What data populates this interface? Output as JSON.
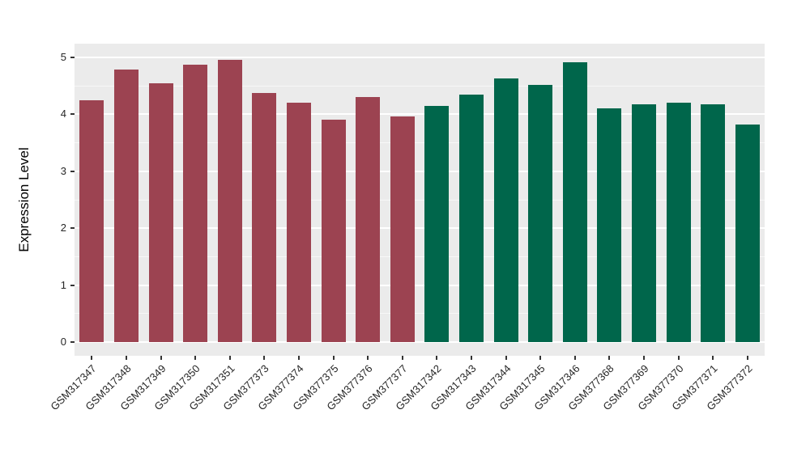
{
  "figure": {
    "background_color": "#FFFFFF",
    "panel_background_color": "#EBEBEB",
    "grid_major_color": "#FFFFFF",
    "grid_minor_color": "#F7F7F7",
    "tick_mark_color": "#333333",
    "axis_text_color": "#262626",
    "axis_title_color": "#000000"
  },
  "chart_data": {
    "type": "bar",
    "title": "",
    "xlabel": "",
    "ylabel": "Expression Level",
    "categories": [
      "GSM317347",
      "GSM317348",
      "GSM317349",
      "GSM317350",
      "GSM317351",
      "GSM377373",
      "GSM377374",
      "GSM377375",
      "GSM377376",
      "GSM377377",
      "GSM317342",
      "GSM317343",
      "GSM317344",
      "GSM317345",
      "GSM317346",
      "GSM377368",
      "GSM377369",
      "GSM377370",
      "GSM377371",
      "GSM377372"
    ],
    "values": [
      4.25,
      4.78,
      4.54,
      4.87,
      4.96,
      4.37,
      4.21,
      3.9,
      4.3,
      3.96,
      4.15,
      4.35,
      4.63,
      4.51,
      4.91,
      4.11,
      4.17,
      4.21,
      4.18,
      3.82
    ],
    "bar_groups": [
      "groupA",
      "groupA",
      "groupA",
      "groupA",
      "groupA",
      "groupA",
      "groupA",
      "groupA",
      "groupA",
      "groupA",
      "groupB",
      "groupB",
      "groupB",
      "groupB",
      "groupB",
      "groupB",
      "groupB",
      "groupB",
      "groupB",
      "groupB"
    ],
    "group_colors": {
      "groupA": "#9C4351",
      "groupB": "#00664B"
    },
    "yticks": [
      0,
      1,
      2,
      3,
      4,
      5
    ],
    "yticks_minor": [
      0.5,
      1.5,
      2.5,
      3.5,
      4.5
    ],
    "ylim": [
      0,
      5
    ],
    "grid": true,
    "legend_position": "none",
    "x_label_rotation_deg": 45
  }
}
